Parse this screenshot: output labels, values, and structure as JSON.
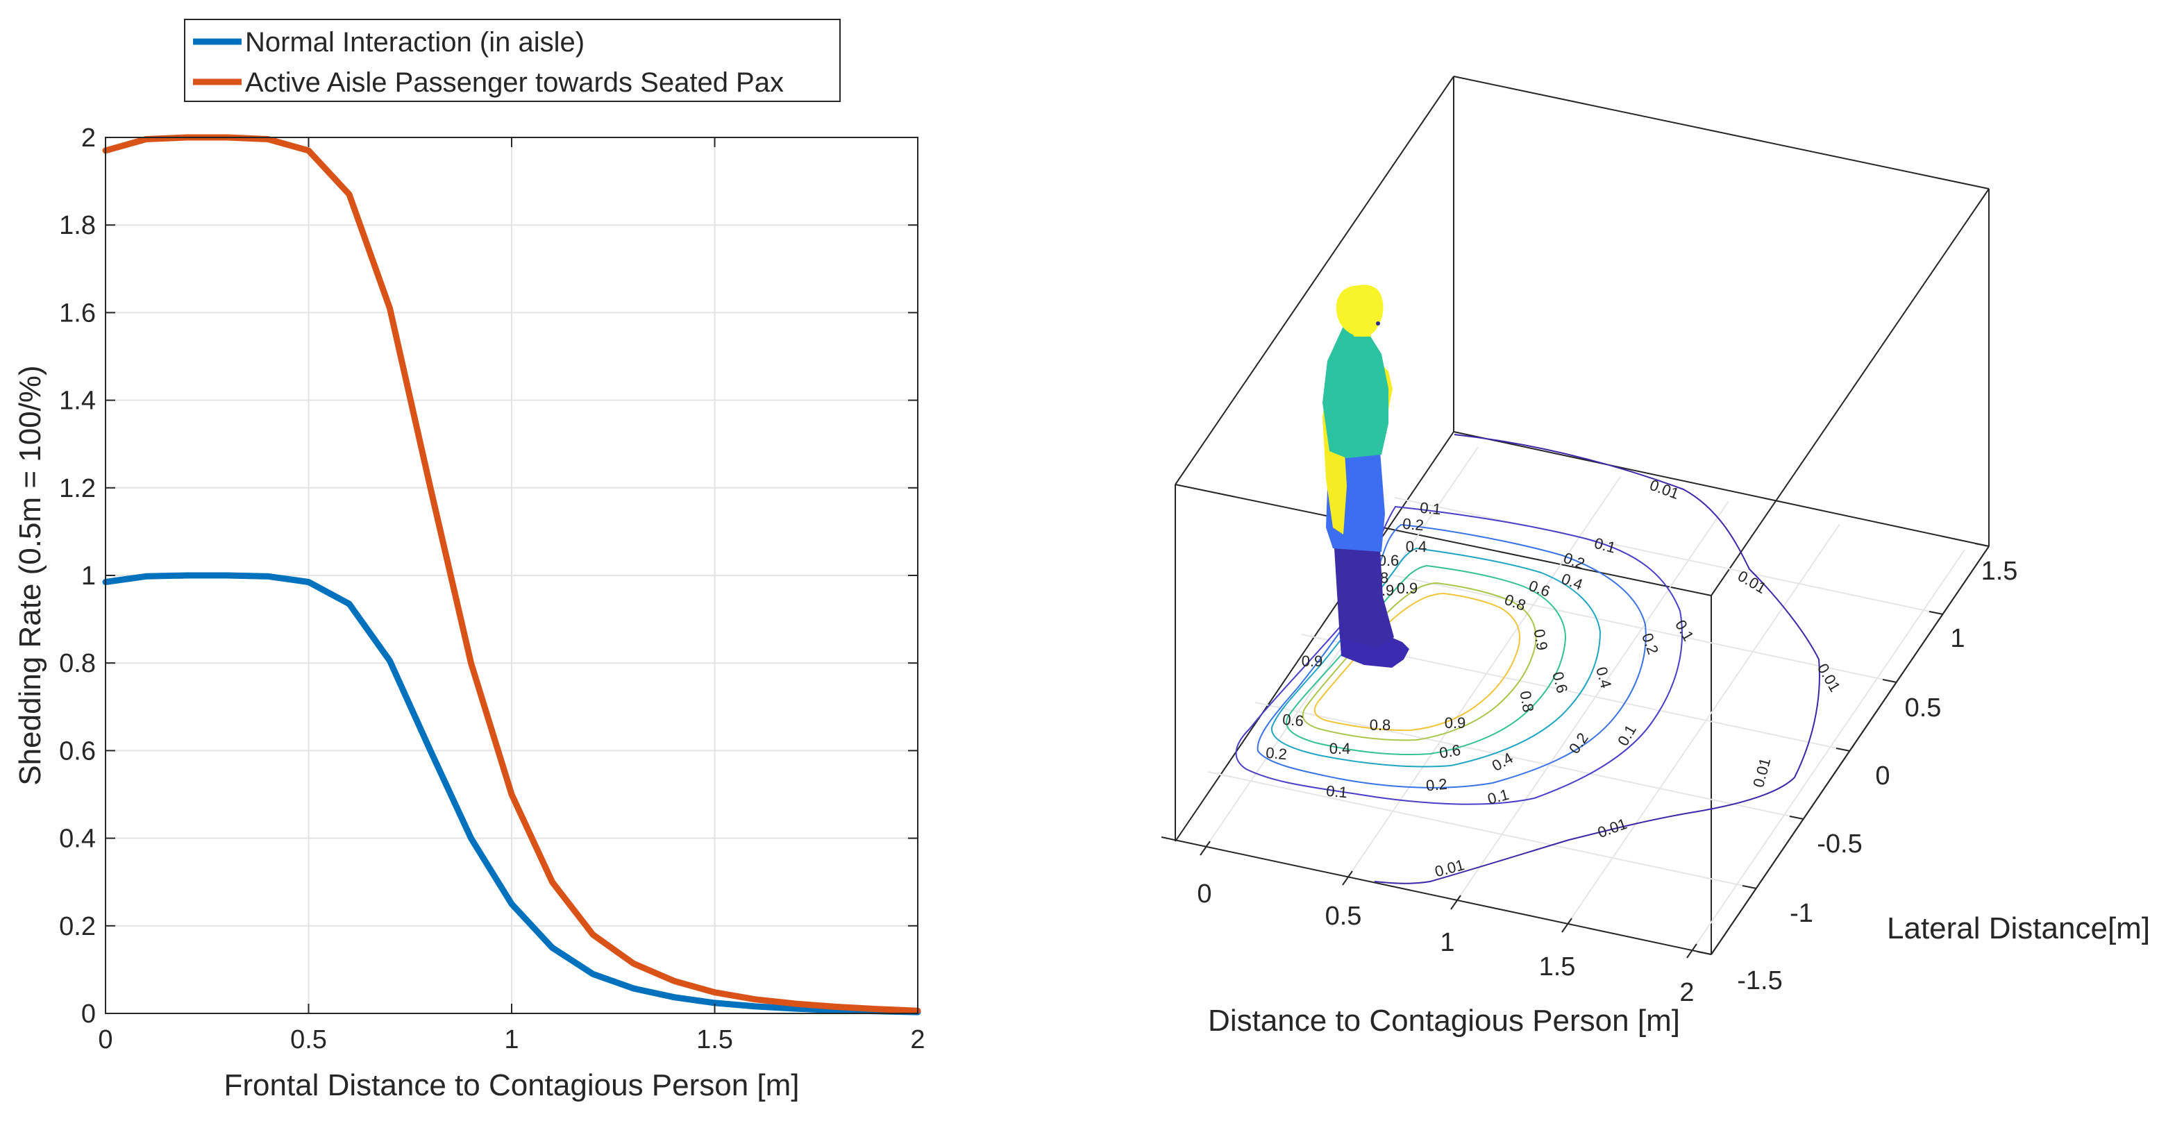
{
  "chart_data": [
    {
      "type": "line",
      "title": "",
      "xlabel": "Frontal Distance to Contagious Person [m]",
      "ylabel": "Shedding Rate (0.5m = 100/%)",
      "xlim": [
        0,
        2
      ],
      "ylim": [
        0,
        2
      ],
      "xticks": [
        0,
        0.5,
        1,
        1.5,
        2
      ],
      "xtick_labels": [
        "0",
        "0.5",
        "1",
        "1.5",
        "2"
      ],
      "yticks": [
        0,
        0.2,
        0.4,
        0.6,
        0.8,
        1,
        1.2,
        1.4,
        1.6,
        1.8,
        2
      ],
      "ytick_labels": [
        "0",
        "0.2",
        "0.4",
        "0.6",
        "0.8",
        "1",
        "1.2",
        "1.4",
        "1.6",
        "1.8",
        "2"
      ],
      "grid": true,
      "legend_position": "top-center-outside",
      "x": [
        0,
        0.1,
        0.2,
        0.3,
        0.4,
        0.5,
        0.6,
        0.7,
        0.8,
        0.9,
        1.0,
        1.1,
        1.2,
        1.3,
        1.4,
        1.5,
        1.6,
        1.7,
        1.8,
        1.9,
        2.0
      ],
      "series": [
        {
          "name": "Normal Interaction (in aisle)",
          "color": "#0072BD",
          "values": [
            0.985,
            0.998,
            1.0,
            1.0,
            0.998,
            0.985,
            0.935,
            0.805,
            0.6,
            0.4,
            0.25,
            0.15,
            0.09,
            0.057,
            0.037,
            0.024,
            0.016,
            0.011,
            0.007,
            0.005,
            0.003
          ]
        },
        {
          "name": "Active Aisle Passenger towards Seated Pax",
          "color": "#D95319",
          "values": [
            1.97,
            1.996,
            2.0,
            2.0,
            1.996,
            1.97,
            1.87,
            1.61,
            1.2,
            0.8,
            0.5,
            0.3,
            0.18,
            0.114,
            0.074,
            0.048,
            0.032,
            0.022,
            0.015,
            0.01,
            0.006
          ]
        }
      ]
    },
    {
      "type": "contour",
      "title": "",
      "xlabel": "Distance to Contagious Person [m]",
      "ylabel": "Lateral Distance[m]",
      "xticks": [
        "0",
        "0.5",
        "1",
        "1.5",
        "2"
      ],
      "yticks": [
        "-1.5",
        "-1",
        "-0.5",
        "0",
        "0.5",
        "1",
        "1.5"
      ],
      "contour_levels": [
        {
          "level": 0.01,
          "labels": [
            "0.01",
            "0.01",
            "0.01",
            "0.01",
            "0.01",
            "0.01"
          ],
          "color": "#3e26a8"
        },
        {
          "level": 0.1,
          "labels": [
            "0.1",
            "0.1",
            "0.1",
            "0.1",
            "0.1",
            "0.1"
          ],
          "color": "#4a3ec8"
        },
        {
          "level": 0.2,
          "labels": [
            "0.2",
            "0.2",
            "0.2",
            "0.2",
            "0.2",
            "0.2"
          ],
          "color": "#3a73e6"
        },
        {
          "level": 0.4,
          "labels": [
            "0.4",
            "0.4",
            "0.4",
            "0.4",
            "0.4"
          ],
          "color": "#1fa5c4"
        },
        {
          "level": 0.6,
          "labels": [
            "0.6",
            "0.6",
            "0.6",
            "0.6",
            "0.6"
          ],
          "color": "#35c28f"
        },
        {
          "level": 0.8,
          "labels": [
            "0.8",
            "0.8",
            "0.8",
            "0.8",
            "0.8"
          ],
          "color": "#a9c64a"
        },
        {
          "level": 0.9,
          "labels": [
            "0.9",
            "0.9",
            "0.9",
            "0.9",
            "0.9"
          ],
          "color": "#f2c43a"
        }
      ],
      "figure": "standing passenger mannequin"
    }
  ]
}
